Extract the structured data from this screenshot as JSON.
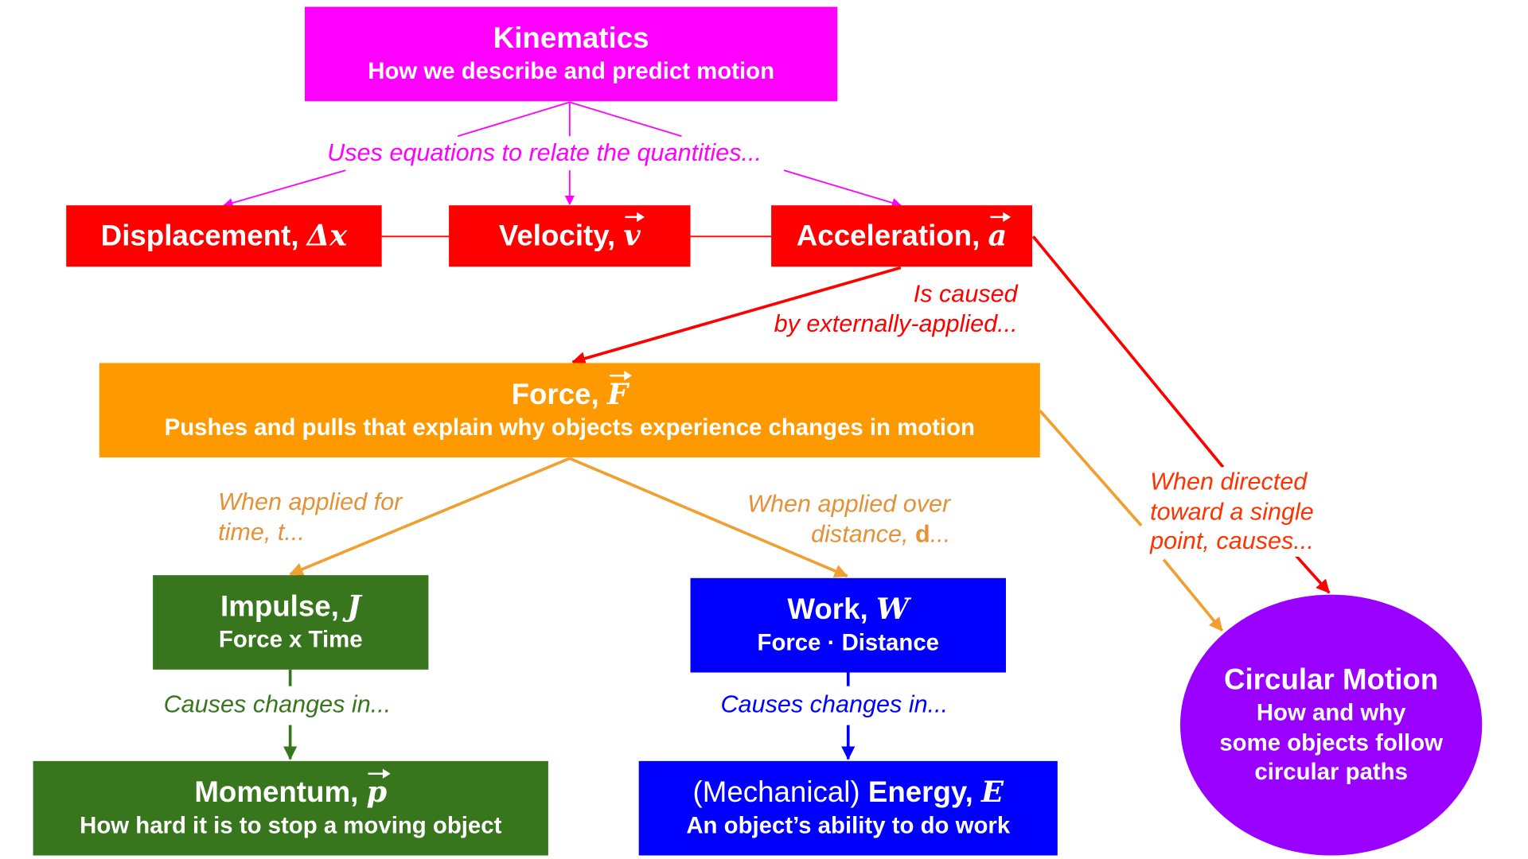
{
  "colors": {
    "kinematics": "#ff00ff",
    "motion_quantities": "#ff0000",
    "force": "#ff9900",
    "impulse_momentum": "#38761d",
    "work_energy": "#0000ff",
    "circular": "#9900ff",
    "label_force": "#e69138"
  },
  "kinematics": {
    "title": "Kinematics",
    "subtitle": "How we describe and predict motion"
  },
  "labels": {
    "uses_equations": "Uses equations to relate the quantities...",
    "caused_line1": "Is caused",
    "caused_line2": "by externally-applied...",
    "time_line1": "When applied for",
    "time_line2": "time, t...",
    "distance_line1": "When applied over",
    "distance_prefix": "distance, ",
    "distance_symbol": "d",
    "distance_suffix": "...",
    "directed_line1": "When directed",
    "directed_line2": "toward a single",
    "directed_line3": "point, causes...",
    "impulse_causes": "Causes changes in...",
    "work_causes": "Causes changes in..."
  },
  "displacement": {
    "title": "Displacement, ",
    "symbol": "Δx"
  },
  "velocity": {
    "title": "Velocity, ",
    "symbol": "v"
  },
  "acceleration": {
    "title": "Acceleration, ",
    "symbol": "a"
  },
  "force": {
    "title": "Force, ",
    "symbol": "F",
    "subtitle": "Pushes and pulls that explain why objects experience changes in motion"
  },
  "impulse": {
    "title": "Impulse, ",
    "symbol": "J",
    "subtitle": "Force x Time"
  },
  "work": {
    "title": "Work, ",
    "symbol": "W",
    "subtitle": "Force · Distance"
  },
  "momentum": {
    "title": "Momentum, ",
    "symbol": "p",
    "subtitle": "How hard it is to stop a moving object"
  },
  "energy": {
    "prefix": "(Mechanical) ",
    "title": "Energy, ",
    "symbol": "E",
    "subtitle": "An object’s ability to do work"
  },
  "circular": {
    "title": "Circular Motion",
    "line1": "How and why",
    "line2": "some objects follow",
    "line3": "circular paths"
  }
}
